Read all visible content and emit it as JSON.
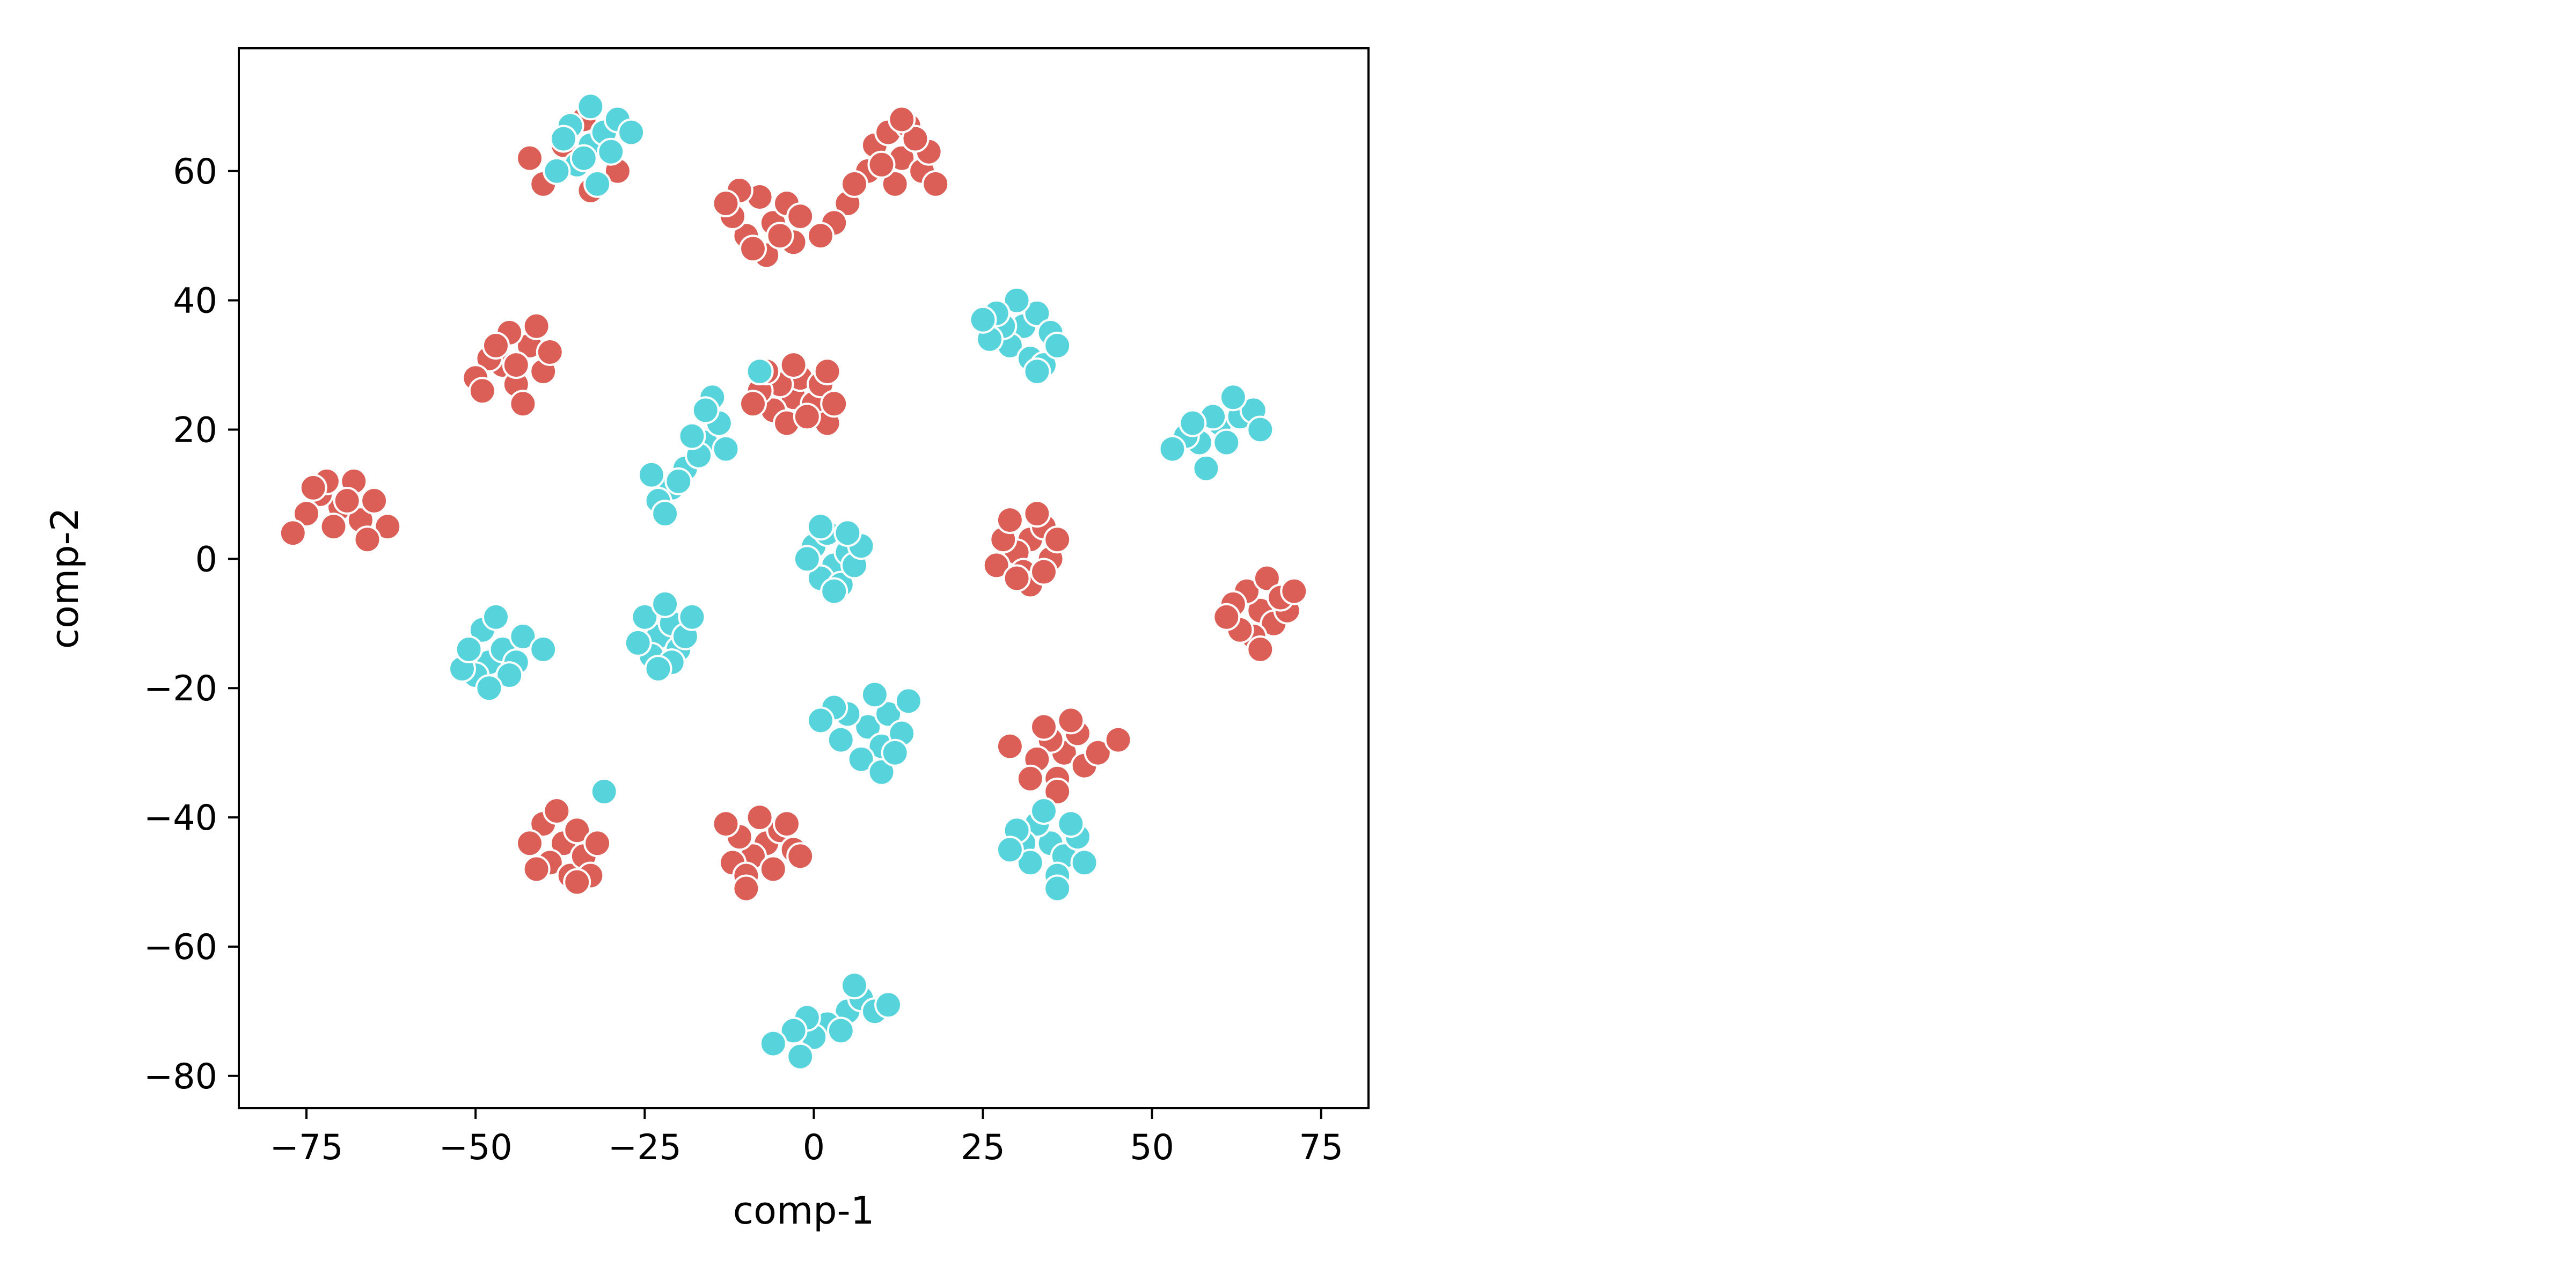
{
  "chart_data": {
    "type": "scatter",
    "xlabel": "comp-1",
    "ylabel": "comp-2",
    "xlim": [
      -85,
      82
    ],
    "ylim": [
      -85,
      79
    ],
    "xticks": [
      -75,
      -50,
      -25,
      0,
      25,
      50,
      75
    ],
    "xtick_labels": [
      "−75",
      "−50",
      "−25",
      "0",
      "25",
      "50",
      "75"
    ],
    "yticks": [
      -80,
      -60,
      -40,
      -20,
      0,
      20,
      40,
      60
    ],
    "ytick_labels": [
      "−80",
      "−60",
      "−40",
      "−20",
      "0",
      "20",
      "40",
      "60"
    ],
    "grid": false,
    "legend": "none",
    "colors": {
      "red": "#db5f57",
      "cyan": "#57d3db",
      "edge": "#ffffff",
      "axis": "#000000"
    },
    "series": [
      {
        "color": "red",
        "points": [
          [
            -32.5,
            64
          ],
          [
            -35,
            61
          ],
          [
            -40,
            58
          ],
          [
            -31,
            66
          ],
          [
            -36,
            67
          ],
          [
            -34,
            68
          ],
          [
            -38,
            60
          ],
          [
            -30,
            63
          ],
          [
            -42,
            62
          ],
          [
            -33,
            57
          ],
          [
            -37,
            64
          ],
          [
            -29,
            60
          ],
          [
            -6,
            52
          ],
          [
            -10,
            50
          ],
          [
            -4,
            55
          ],
          [
            -8,
            56
          ],
          [
            -12,
            53
          ],
          [
            -3,
            49
          ],
          [
            -7,
            47
          ],
          [
            -11,
            57
          ],
          [
            -5,
            50
          ],
          [
            -9,
            48
          ],
          [
            -2,
            53
          ],
          [
            -13,
            55
          ],
          [
            13,
            62
          ],
          [
            9,
            64
          ],
          [
            16,
            60
          ],
          [
            11,
            66
          ],
          [
            14,
            67
          ],
          [
            17,
            63
          ],
          [
            8,
            60
          ],
          [
            12,
            58
          ],
          [
            15,
            65
          ],
          [
            10,
            61
          ],
          [
            18,
            58
          ],
          [
            13,
            68
          ],
          [
            5,
            55
          ],
          [
            3,
            52
          ],
          [
            1,
            50
          ],
          [
            6,
            58
          ],
          [
            -46,
            30
          ],
          [
            -44,
            27
          ],
          [
            -48,
            31
          ],
          [
            -42,
            33
          ],
          [
            -45,
            35
          ],
          [
            -50,
            28
          ],
          [
            -40,
            29
          ],
          [
            -43,
            24
          ],
          [
            -47,
            33
          ],
          [
            -39,
            32
          ],
          [
            -49,
            26
          ],
          [
            -41,
            36
          ],
          [
            -44,
            30
          ],
          [
            -3,
            25
          ],
          [
            -6,
            23
          ],
          [
            0,
            24
          ],
          [
            -2,
            28
          ],
          [
            -5,
            27
          ],
          [
            2,
            21
          ],
          [
            -8,
            26
          ],
          [
            1,
            27
          ],
          [
            -4,
            21
          ],
          [
            3,
            24
          ],
          [
            -7,
            29
          ],
          [
            -1,
            22
          ],
          [
            -9,
            24
          ],
          [
            -3,
            30
          ],
          [
            2,
            29
          ],
          [
            -70,
            8
          ],
          [
            -73,
            10
          ],
          [
            -67,
            6
          ],
          [
            -71,
            5
          ],
          [
            -75,
            7
          ],
          [
            -65,
            9
          ],
          [
            -68,
            12
          ],
          [
            -72,
            12
          ],
          [
            -63,
            5
          ],
          [
            -77,
            4
          ],
          [
            -66,
            3
          ],
          [
            -69,
            9
          ],
          [
            -74,
            11
          ],
          [
            32,
            3
          ],
          [
            30,
            1
          ],
          [
            34,
            5
          ],
          [
            28,
            3
          ],
          [
            31,
            -2
          ],
          [
            35,
            0
          ],
          [
            33,
            7
          ],
          [
            29,
            6
          ],
          [
            36,
            3
          ],
          [
            32,
            -4
          ],
          [
            27,
            -1
          ],
          [
            30,
            -3
          ],
          [
            34,
            -2
          ],
          [
            66,
            -8
          ],
          [
            64,
            -5
          ],
          [
            68,
            -10
          ],
          [
            62,
            -7
          ],
          [
            67,
            -3
          ],
          [
            70,
            -8
          ],
          [
            65,
            -12
          ],
          [
            63,
            -11
          ],
          [
            69,
            -6
          ],
          [
            61,
            -9
          ],
          [
            66,
            -14
          ],
          [
            71,
            -5
          ],
          [
            37,
            -30
          ],
          [
            35,
            -28
          ],
          [
            39,
            -27
          ],
          [
            33,
            -31
          ],
          [
            36,
            -34
          ],
          [
            40,
            -32
          ],
          [
            34,
            -26
          ],
          [
            38,
            -25
          ],
          [
            42,
            -30
          ],
          [
            32,
            -34
          ],
          [
            45,
            -28
          ],
          [
            29,
            -29
          ],
          [
            36,
            -36
          ],
          [
            -37,
            -44
          ],
          [
            -39,
            -47
          ],
          [
            -35,
            -42
          ],
          [
            -40,
            -41
          ],
          [
            -36,
            -49
          ],
          [
            -34,
            -46
          ],
          [
            -38,
            -39
          ],
          [
            -33,
            -49
          ],
          [
            -41,
            -48
          ],
          [
            -35,
            -50
          ],
          [
            -42,
            -44
          ],
          [
            -32,
            -44
          ],
          [
            -7,
            -44
          ],
          [
            -9,
            -46
          ],
          [
            -5,
            -42
          ],
          [
            -11,
            -43
          ],
          [
            -6,
            -48
          ],
          [
            -3,
            -45
          ],
          [
            -8,
            -40
          ],
          [
            -12,
            -47
          ],
          [
            -4,
            -41
          ],
          [
            -10,
            -49
          ],
          [
            -2,
            -46
          ],
          [
            -10,
            -51
          ],
          [
            -13,
            -41
          ]
        ]
      },
      {
        "color": "cyan",
        "points": [
          [
            -33,
            64
          ],
          [
            -35,
            61
          ],
          [
            -31,
            66
          ],
          [
            -36,
            67
          ],
          [
            -33,
            70
          ],
          [
            -30,
            63
          ],
          [
            -37,
            65
          ],
          [
            -32,
            58
          ],
          [
            -29,
            68
          ],
          [
            -38,
            60
          ],
          [
            -34,
            62
          ],
          [
            -27,
            66
          ],
          [
            31,
            36
          ],
          [
            29,
            33
          ],
          [
            33,
            38
          ],
          [
            28,
            36
          ],
          [
            32,
            31
          ],
          [
            35,
            35
          ],
          [
            30,
            40
          ],
          [
            26,
            34
          ],
          [
            34,
            30
          ],
          [
            27,
            38
          ],
          [
            33,
            29
          ],
          [
            36,
            33
          ],
          [
            25,
            37
          ],
          [
            -16,
            18
          ],
          [
            -19,
            14
          ],
          [
            -14,
            21
          ],
          [
            -21,
            11
          ],
          [
            -17,
            16
          ],
          [
            -23,
            9
          ],
          [
            -15,
            25
          ],
          [
            -13,
            17
          ],
          [
            -20,
            12
          ],
          [
            -24,
            13
          ],
          [
            -18,
            19
          ],
          [
            -16,
            23
          ],
          [
            -22,
            7
          ],
          [
            -8,
            29
          ],
          [
            60,
            21
          ],
          [
            57,
            18
          ],
          [
            63,
            22
          ],
          [
            55,
            19
          ],
          [
            61,
            18
          ],
          [
            65,
            23
          ],
          [
            58,
            14
          ],
          [
            53,
            17
          ],
          [
            62,
            25
          ],
          [
            59,
            22
          ],
          [
            66,
            20
          ],
          [
            56,
            21
          ],
          [
            3,
            -1
          ],
          [
            1,
            -3
          ],
          [
            5,
            1
          ],
          [
            0,
            2
          ],
          [
            4,
            -4
          ],
          [
            6,
            -1
          ],
          [
            2,
            4
          ],
          [
            -1,
            0
          ],
          [
            7,
            2
          ],
          [
            3,
            -5
          ],
          [
            1,
            5
          ],
          [
            5,
            4
          ],
          [
            -48,
            -16
          ],
          [
            -50,
            -18
          ],
          [
            -46,
            -14
          ],
          [
            -44,
            -16
          ],
          [
            -49,
            -11
          ],
          [
            -52,
            -17
          ],
          [
            -45,
            -18
          ],
          [
            -48,
            -20
          ],
          [
            -43,
            -12
          ],
          [
            -51,
            -14
          ],
          [
            -40,
            -14
          ],
          [
            -47,
            -9
          ],
          [
            -23,
            -12
          ],
          [
            -21,
            -10
          ],
          [
            -25,
            -9
          ],
          [
            -20,
            -14
          ],
          [
            -24,
            -15
          ],
          [
            -22,
            -7
          ],
          [
            -19,
            -12
          ],
          [
            -26,
            -13
          ],
          [
            -21,
            -16
          ],
          [
            -23,
            -17
          ],
          [
            -18,
            -9
          ],
          [
            8,
            -26
          ],
          [
            5,
            -24
          ],
          [
            10,
            -29
          ],
          [
            3,
            -23
          ],
          [
            7,
            -31
          ],
          [
            11,
            -24
          ],
          [
            13,
            -27
          ],
          [
            4,
            -28
          ],
          [
            9,
            -21
          ],
          [
            14,
            -22
          ],
          [
            1,
            -25
          ],
          [
            10,
            -33
          ],
          [
            12,
            -30
          ],
          [
            35,
            -44
          ],
          [
            33,
            -41
          ],
          [
            37,
            -46
          ],
          [
            31,
            -44
          ],
          [
            36,
            -49
          ],
          [
            39,
            -43
          ],
          [
            32,
            -47
          ],
          [
            34,
            -39
          ],
          [
            38,
            -41
          ],
          [
            30,
            -42
          ],
          [
            36,
            -51
          ],
          [
            40,
            -47
          ],
          [
            29,
            -45
          ],
          [
            5,
            -70
          ],
          [
            2,
            -72
          ],
          [
            7,
            -68
          ],
          [
            0,
            -74
          ],
          [
            4,
            -73
          ],
          [
            9,
            -70
          ],
          [
            -1,
            -71
          ],
          [
            6,
            -66
          ],
          [
            11,
            -69
          ],
          [
            -3,
            -73
          ],
          [
            -6,
            -75
          ],
          [
            -2,
            -77
          ],
          [
            -31,
            -36
          ]
        ]
      }
    ]
  }
}
